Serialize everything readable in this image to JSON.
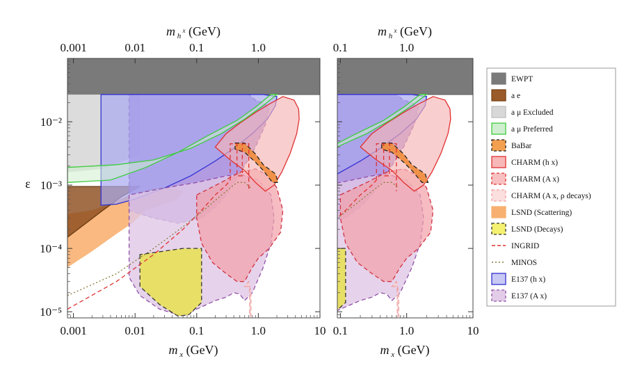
{
  "chart_data": {
    "type": "area",
    "y_label": "ε",
    "y_range": [
      8e-06,
      0.1
    ],
    "y_ticks": [
      "10⁻⁵",
      "10⁻⁴",
      "10⁻³",
      "10⁻²"
    ],
    "y_tick_values": [
      1e-05,
      0.0001,
      0.001,
      0.01
    ],
    "panels": [
      {
        "name": "left",
        "x_label": "m x (GeV)",
        "x_range": [
          0.0008,
          10
        ],
        "x_ticks": [
          "0.001",
          "0.01",
          "0.1",
          "1.0",
          "10"
        ],
        "x_tick_values": [
          0.001,
          0.01,
          0.1,
          1.0,
          10
        ],
        "top_label": "m h x (GeV)",
        "top_ticks": [
          "0.001",
          "0.01",
          "0.1",
          "1.0"
        ],
        "top_tick_values": [
          0.001,
          0.01,
          0.1,
          1.0
        ]
      },
      {
        "name": "right",
        "x_label": "m x (GeV)",
        "x_range": [
          0.09,
          10
        ],
        "x_ticks": [
          "0.1",
          "1.0",
          "10"
        ],
        "x_tick_values": [
          0.1,
          1.0,
          10
        ],
        "top_label": "m h x (GeV)",
        "top_ticks": [
          "0.1",
          "1.0"
        ],
        "top_tick_values": [
          0.1,
          1.0
        ]
      }
    ],
    "legend": [
      {
        "label": "EWPT",
        "fill": "#7a7a7a",
        "stroke": "#7a7a7a",
        "dash": false,
        "kind": "box"
      },
      {
        "label": "a e",
        "fill": "#9a5a2a",
        "stroke": "#7a4418",
        "dash": false,
        "kind": "box"
      },
      {
        "label": "a μ Excluded",
        "fill": "#d8d8d8",
        "stroke": "#c0c0c0",
        "dash": false,
        "kind": "box"
      },
      {
        "label": "a μ Preferred",
        "fill": "#cfeecf",
        "stroke": "#3ccb3c",
        "dash": false,
        "kind": "box"
      },
      {
        "label": "BaBar",
        "fill": "#f2a050",
        "stroke": "#222222",
        "dash": true,
        "kind": "box"
      },
      {
        "label": "CHARM (h x)",
        "fill": "#f8b8b8",
        "stroke": "#e03030",
        "dash": false,
        "kind": "box"
      },
      {
        "label": "CHARM (A x)",
        "fill": "#f8c0c0",
        "stroke": "#e03030",
        "dash": true,
        "kind": "box"
      },
      {
        "label": "CHARM (A x, ρ decays)",
        "fill": "#fbdede",
        "stroke": "#f0a0a0",
        "dash": true,
        "kind": "box"
      },
      {
        "label": "LSND (Scattering)",
        "fill": "#f8b070",
        "stroke": "#f8b070",
        "dash": false,
        "kind": "box"
      },
      {
        "label": "LSND (Decays)",
        "fill": "#f4f070",
        "stroke": "#333333",
        "dash": true,
        "kind": "box"
      },
      {
        "label": "INGRID",
        "fill": "none",
        "stroke": "#e03030",
        "dash": true,
        "kind": "line"
      },
      {
        "label": "MINOS",
        "fill": "none",
        "stroke": "#8a7a3a",
        "dash": "dot",
        "kind": "line"
      },
      {
        "label": "E137 (h x)",
        "fill": "#c8c8f4",
        "stroke": "#3030d0",
        "dash": false,
        "kind": "box"
      },
      {
        "label": "E137 (A x)",
        "fill": "#e2cce8",
        "stroke": "#9050a8",
        "dash": true,
        "kind": "box"
      }
    ],
    "regions": [
      {
        "name": "EWPT",
        "fill": "#7a7a7a",
        "opacity": 1.0,
        "stroke": "#6a6a6a",
        "dash": false,
        "pts": [
          [
            0.0008,
            0.1
          ],
          [
            10,
            0.1
          ],
          [
            10,
            0.027
          ],
          [
            0.0008,
            0.027
          ]
        ]
      },
      {
        "name": "a_mu excluded",
        "fill": "#d8d8d8",
        "opacity": 0.9,
        "stroke": "none",
        "dash": false,
        "pts": [
          [
            0.0008,
            0.027
          ],
          [
            0.012,
            0.027
          ],
          [
            0.012,
            0.003
          ],
          [
            0.003,
            0.0018
          ],
          [
            0.0008,
            0.0016
          ]
        ]
      },
      {
        "name": "LSND scattering",
        "fill": "#f8a860",
        "opacity": 0.8,
        "stroke": "none",
        "dash": false,
        "pts": [
          [
            0.0008,
            5e-05
          ],
          [
            0.002,
            9e-05
          ],
          [
            0.005,
            0.00017
          ],
          [
            0.009,
            0.00025
          ],
          [
            0.015,
            0.0004
          ],
          [
            0.03,
            0.0005
          ],
          [
            0.05,
            0.0006
          ],
          [
            0.06,
            0.0008
          ],
          [
            0.04,
            0.0009
          ],
          [
            0.02,
            0.0009
          ],
          [
            0.008,
            0.0007
          ],
          [
            0.004,
            0.0005
          ],
          [
            0.002,
            0.0004
          ],
          [
            0.0008,
            0.00035
          ]
        ]
      },
      {
        "name": "a_e",
        "fill": "#8a4a1a",
        "opacity": 0.8,
        "stroke": "#6a3a10",
        "dash": false,
        "pts": [
          [
            0.0008,
            0.00015
          ],
          [
            0.0016,
            0.00025
          ],
          [
            0.003,
            0.0004
          ],
          [
            0.006,
            0.00065
          ],
          [
            0.012,
            0.00095
          ],
          [
            0.0008,
            0.00095
          ]
        ]
      },
      {
        "name": "E137 A' dark",
        "fill": "#9a7ad8",
        "opacity": 0.75,
        "stroke": "#8050a8",
        "dash": true,
        "pts": [
          [
            0.008,
            0.027
          ],
          [
            0.7,
            0.027
          ],
          [
            0.9,
            0.022
          ],
          [
            1.2,
            0.02
          ],
          [
            1.5,
            0.017
          ],
          [
            1.3,
            0.009
          ],
          [
            0.9,
            0.004
          ],
          [
            0.5,
            0.0015
          ],
          [
            0.3,
            0.0007
          ],
          [
            0.2,
            0.00045
          ],
          [
            0.12,
            0.0003
          ],
          [
            0.05,
            0.00025
          ],
          [
            0.02,
            0.0003
          ],
          [
            0.008,
            0.0004
          ]
        ]
      },
      {
        "name": "E137 h' blue",
        "fill": "#a8a8f0",
        "opacity": 0.7,
        "stroke": "#3030d0",
        "dash": false,
        "pts": [
          [
            0.0028,
            0.027
          ],
          [
            1.2,
            0.027
          ],
          [
            2.0,
            0.025
          ],
          [
            1.9,
            0.018
          ],
          [
            1.4,
            0.011
          ],
          [
            0.8,
            0.0065
          ],
          [
            0.4,
            0.0038
          ],
          [
            0.2,
            0.0024
          ],
          [
            0.08,
            0.0014
          ],
          [
            0.03,
            0.0009
          ],
          [
            0.01,
            0.0006
          ],
          [
            0.005,
            0.0005
          ],
          [
            0.0028,
            0.00048
          ]
        ]
      },
      {
        "name": "E137 A' lower lobe",
        "fill": "#e0c8e6",
        "opacity": 0.8,
        "stroke": "#9050a8",
        "dash": true,
        "pts": [
          [
            0.008,
            0.0007
          ],
          [
            0.008,
            3.5e-05
          ],
          [
            0.012,
            1.8e-05
          ],
          [
            0.025,
            1.1e-05
          ],
          [
            0.06,
            8.5e-06
          ],
          [
            0.1,
            1.1e-05
          ],
          [
            0.2,
            1.5e-05
          ],
          [
            0.3,
            1.7e-05
          ],
          [
            0.4,
            2e-05
          ],
          [
            0.5,
            1.9e-05
          ],
          [
            0.6,
            1.5e-05
          ],
          [
            0.8,
            2e-05
          ],
          [
            1.2,
            5e-05
          ],
          [
            1.6,
            0.00012
          ],
          [
            1.8,
            0.0003
          ],
          [
            1.6,
            0.0007
          ],
          [
            1.0,
            0.0012
          ],
          [
            0.5,
            0.0015
          ],
          [
            0.3,
            0.0014
          ],
          [
            0.1,
            0.0011
          ],
          [
            0.03,
            0.0009
          ]
        ]
      },
      {
        "name": "LSND decays",
        "fill": "#e8e050",
        "opacity": 0.85,
        "stroke": "#333333",
        "dash": true,
        "pts": [
          [
            0.012,
            8e-05
          ],
          [
            0.012,
            2.5e-05
          ],
          [
            0.025,
            1.3e-05
          ],
          [
            0.05,
            8.5e-06
          ],
          [
            0.075,
            9e-06
          ],
          [
            0.12,
            1.4e-05
          ],
          [
            0.12,
            0.0001
          ],
          [
            0.06,
            0.0001
          ]
        ]
      },
      {
        "name": "CHARM A'",
        "fill": "#f2a0a8",
        "opacity": 0.7,
        "stroke": "#d03040",
        "dash": true,
        "pts": [
          [
            0.1,
            0.0007
          ],
          [
            0.25,
            0.0011
          ],
          [
            0.5,
            0.0016
          ],
          [
            0.9,
            0.0018
          ],
          [
            1.5,
            0.0014
          ],
          [
            2.0,
            0.0009
          ],
          [
            2.5,
            0.0004
          ],
          [
            2.3,
            0.00018
          ],
          [
            1.5,
            0.0001
          ],
          [
            1.0,
            7e-05
          ],
          [
            0.8,
            5e-05
          ],
          [
            0.7,
            4e-05
          ],
          [
            0.6,
            3e-05
          ],
          [
            0.45,
            3e-05
          ],
          [
            0.3,
            4e-05
          ],
          [
            0.18,
            6e-05
          ],
          [
            0.12,
            0.00012
          ],
          [
            0.1,
            0.0003
          ]
        ]
      },
      {
        "name": "CHARM h'",
        "fill": "#f6b4b4",
        "opacity": 0.65,
        "stroke": "#e03030",
        "dash": false,
        "pts": [
          [
            0.2,
            0.004
          ],
          [
            0.3,
            0.0065
          ],
          [
            0.5,
            0.0095
          ],
          [
            0.9,
            0.014
          ],
          [
            1.5,
            0.019
          ],
          [
            2.5,
            0.025
          ],
          [
            3.8,
            0.022
          ],
          [
            4.5,
            0.016
          ],
          [
            4.6,
            0.011
          ],
          [
            4.2,
            0.0065
          ],
          [
            3.3,
            0.0032
          ],
          [
            2.4,
            0.0016
          ],
          [
            1.8,
            0.001
          ],
          [
            1.3,
            0.0008
          ],
          [
            0.9,
            0.0011
          ],
          [
            0.6,
            0.0017
          ],
          [
            0.35,
            0.0025
          ]
        ]
      },
      {
        "name": "CHARM rho",
        "fill": "#f9d0d0",
        "opacity": 0.8,
        "stroke": "#f0a0a0",
        "dash": true,
        "pts": [
          [
            0.6,
            2.5e-05
          ],
          [
            0.72,
            2.5e-05
          ],
          [
            0.72,
            8.5e-06
          ],
          [
            0.76,
            8.5e-06
          ],
          [
            0.76,
            2e-05
          ],
          [
            0.7,
            3e-05
          ]
        ]
      },
      {
        "name": "BaBar",
        "fill": "#f08c3c",
        "opacity": 0.9,
        "stroke": "#222222",
        "dash": true,
        "pts": [
          [
            0.42,
            0.0046
          ],
          [
            0.6,
            0.0046
          ],
          [
            0.9,
            0.0031
          ],
          [
            1.2,
            0.0021
          ],
          [
            1.6,
            0.0017
          ],
          [
            1.9,
            0.0015
          ],
          [
            2.1,
            0.0011
          ],
          [
            1.7,
            0.0011
          ],
          [
            1.2,
            0.0017
          ],
          [
            0.9,
            0.0023
          ],
          [
            0.6,
            0.0033
          ],
          [
            0.42,
            0.0037
          ]
        ]
      },
      {
        "name": "a_mu preferred",
        "fill": "#cfeecf",
        "opacity": 0.55,
        "stroke": "#3ccb3c",
        "dash": false,
        "pts": [
          [
            0.0008,
            0.0019
          ],
          [
            0.005,
            0.0021
          ],
          [
            0.02,
            0.0025
          ],
          [
            0.08,
            0.0038
          ],
          [
            0.25,
            0.0065
          ],
          [
            0.6,
            0.011
          ],
          [
            1.2,
            0.018
          ],
          [
            2.0,
            0.027
          ],
          [
            1.6,
            0.027
          ],
          [
            0.9,
            0.017
          ],
          [
            0.45,
            0.0105
          ],
          [
            0.15,
            0.006
          ],
          [
            0.05,
            0.0033
          ],
          [
            0.015,
            0.0019
          ],
          [
            0.004,
            0.0012
          ],
          [
            0.0008,
            0.0011
          ]
        ]
      }
    ],
    "lines": [
      {
        "name": "INGRID",
        "stroke": "#e03030",
        "dash": "6,4",
        "width": 1.3,
        "pts": [
          [
            0.0008,
            1.1e-05
          ],
          [
            0.005,
            3e-05
          ],
          [
            0.02,
            8e-05
          ],
          [
            0.06,
            0.0002
          ],
          [
            0.12,
            0.0004
          ],
          [
            0.2,
            0.0007
          ],
          [
            0.3,
            0.001
          ],
          [
            0.35,
            0.0012
          ]
        ]
      },
      {
        "name": "INGRID box",
        "stroke": "#e03030",
        "dash": "6,4",
        "width": 1.3,
        "pts": [
          [
            0.35,
            0.0012
          ],
          [
            0.35,
            0.0045
          ],
          [
            0.45,
            0.0045
          ],
          [
            0.45,
            0.0014
          ],
          [
            0.55,
            0.0014
          ],
          [
            0.55,
            0.0045
          ],
          [
            0.7,
            0.0045
          ],
          [
            0.7,
            0.0008
          ]
        ]
      },
      {
        "name": "MINOS",
        "stroke": "#8a7a3a",
        "dash": "2,3",
        "width": 1.3,
        "pts": [
          [
            0.0008,
            1.8e-05
          ],
          [
            0.005,
            4e-05
          ],
          [
            0.02,
            0.0001
          ],
          [
            0.06,
            0.00022
          ],
          [
            0.15,
            0.00045
          ],
          [
            0.3,
            0.0008
          ],
          [
            0.45,
            0.0011
          ],
          [
            0.6,
            0.0011
          ],
          [
            0.75,
            0.0009
          ]
        ]
      }
    ]
  }
}
